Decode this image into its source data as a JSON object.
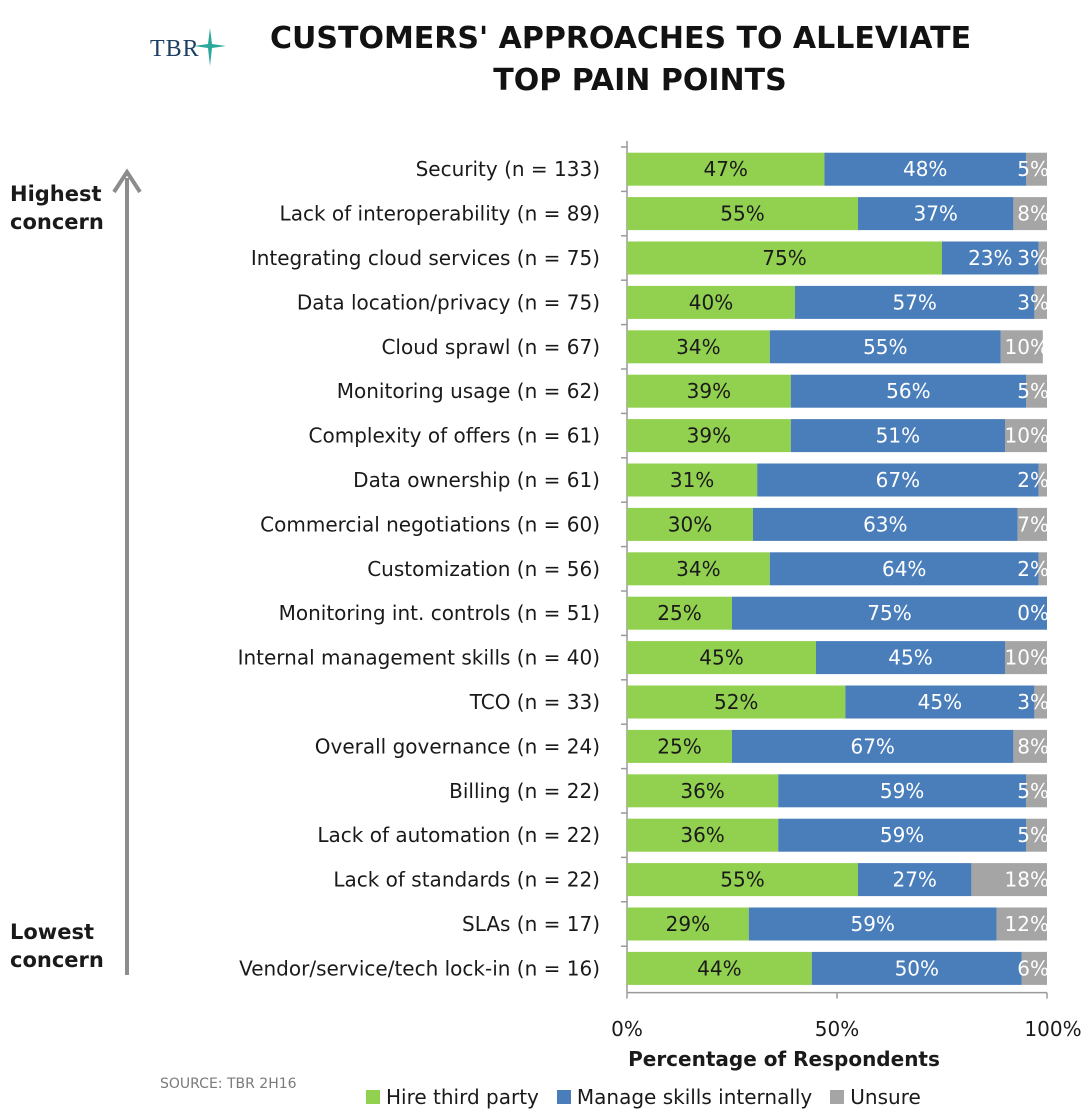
{
  "logo": {
    "text": "TBR"
  },
  "title": {
    "line1": "CUSTOMERS' APPROACHES TO ALLEVIATE",
    "line2": "TOP PAIN POINTS"
  },
  "concern_labels": {
    "top": [
      "Highest",
      "concern"
    ],
    "bottom": [
      "Lowest",
      "concern"
    ]
  },
  "source": "SOURCE: TBR 2H16",
  "colors": {
    "hire": "#92d050",
    "manage": "#4a7ebb",
    "unsure": "#a5a5a5",
    "logo_star": "#2aa89a"
  },
  "chart_data": {
    "type": "bar",
    "orientation": "horizontal",
    "stacked": true,
    "xlabel": "Percentage of Respondents",
    "xlim": [
      0,
      100
    ],
    "xticks": [
      "0%",
      "50%",
      "100%"
    ],
    "categories": [
      "Security (n = 133)",
      "Lack of interoperability (n = 89)",
      "Integrating cloud services (n = 75)",
      "Data location/privacy (n = 75)",
      "Cloud sprawl (n = 67)",
      "Monitoring usage (n = 62)",
      "Complexity of offers (n = 61)",
      "Data ownership (n = 61)",
      "Commercial negotiations (n = 60)",
      "Customization (n = 56)",
      "Monitoring int. controls (n = 51)",
      "Internal management skills (n = 40)",
      "TCO (n = 33)",
      "Overall governance (n = 24)",
      "Billing (n = 22)",
      "Lack of automation (n = 22)",
      "Lack of standards (n = 22)",
      "SLAs (n = 17)",
      "Vendor/service/tech lock-in (n = 16)"
    ],
    "series": [
      {
        "name": "Hire third party",
        "values": [
          47,
          55,
          75,
          40,
          34,
          39,
          39,
          31,
          30,
          34,
          25,
          45,
          52,
          25,
          36,
          36,
          55,
          29,
          44
        ]
      },
      {
        "name": "Manage skills internally",
        "values": [
          48,
          37,
          23,
          57,
          55,
          56,
          51,
          67,
          63,
          64,
          75,
          45,
          45,
          67,
          59,
          59,
          27,
          59,
          50
        ]
      },
      {
        "name": "Unsure",
        "values": [
          5,
          8,
          3,
          3,
          10,
          5,
          10,
          2,
          7,
          2,
          0,
          10,
          3,
          8,
          5,
          5,
          18,
          12,
          6
        ]
      }
    ],
    "data_labels": [
      [
        "47%",
        "48%",
        "5%"
      ],
      [
        "55%",
        "37%",
        "8%"
      ],
      [
        "75%",
        "23%",
        "3%"
      ],
      [
        "40%",
        "57%",
        "3%"
      ],
      [
        "34%",
        "55%",
        "10%"
      ],
      [
        "39%",
        "56%",
        "5%"
      ],
      [
        "39%",
        "51%",
        "10%"
      ],
      [
        "31%",
        "67%",
        "2%"
      ],
      [
        "30%",
        "63%",
        "7%"
      ],
      [
        "34%",
        "64%",
        "2%"
      ],
      [
        "25%",
        "75%",
        "0%"
      ],
      [
        "45%",
        "45%",
        "10%"
      ],
      [
        "52%",
        "45%",
        "3%"
      ],
      [
        "25%",
        "67%",
        "8%"
      ],
      [
        "36%",
        "59%",
        "5%"
      ],
      [
        "36%",
        "59%",
        "5%"
      ],
      [
        "55%",
        "27%",
        "18%"
      ],
      [
        "29%",
        "59%",
        "12%"
      ],
      [
        "44%",
        "50%",
        "6%"
      ]
    ],
    "legend_position": "bottom"
  }
}
